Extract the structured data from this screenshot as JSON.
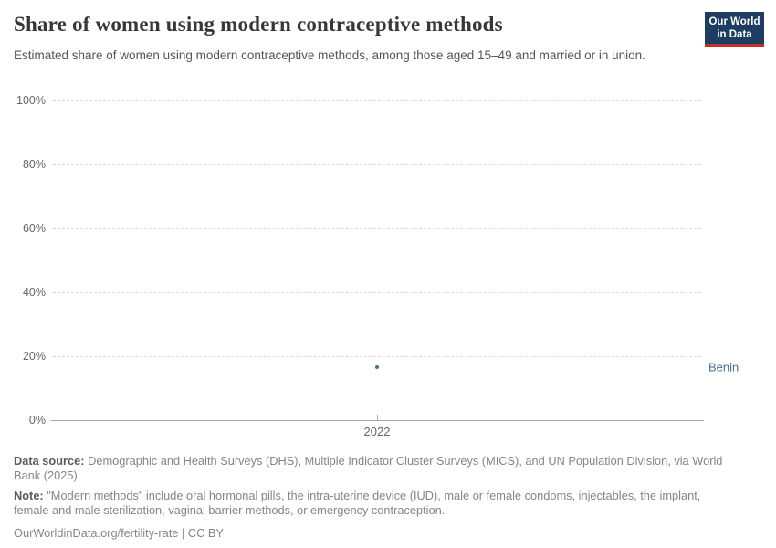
{
  "header": {
    "title": "Share of women using modern contraceptive methods",
    "subtitle": "Estimated share of women using modern contraceptive methods, among those aged 15–49 and married or in union.",
    "logo": {
      "line1": "Our World",
      "line2": "in Data",
      "bg_color": "#1d3d63",
      "accent_color": "#c5302b"
    }
  },
  "chart_data": {
    "type": "scatter",
    "title": "Share of women using modern contraceptive methods",
    "xlabel": "",
    "ylabel": "",
    "x_ticks": [
      "2022"
    ],
    "y_ticks": [
      "0%",
      "20%",
      "40%",
      "60%",
      "80%",
      "100%"
    ],
    "ylim": [
      0,
      100
    ],
    "grid": "horizontal-dashed",
    "legend_position": "entity-label-right",
    "series": [
      {
        "name": "Benin",
        "color": "#4C6A9C",
        "points": [
          {
            "x": 2022,
            "y": 16.6
          }
        ]
      }
    ]
  },
  "footer": {
    "data_source_label": "Data source:",
    "data_source_text": "Demographic and Health Surveys (DHS), Multiple Indicator Cluster Surveys (MICS), and UN Population Division, via World Bank (2025)",
    "note_label": "Note:",
    "note_text": "\"Modern methods\" include oral hormonal pills, the intra-uterine device (IUD), male or female condoms, injectables, the implant, female and male sterilization, vaginal barrier methods, or emergency contraception.",
    "link_text": "OurWorldinData.org/fertility-rate | CC BY"
  }
}
